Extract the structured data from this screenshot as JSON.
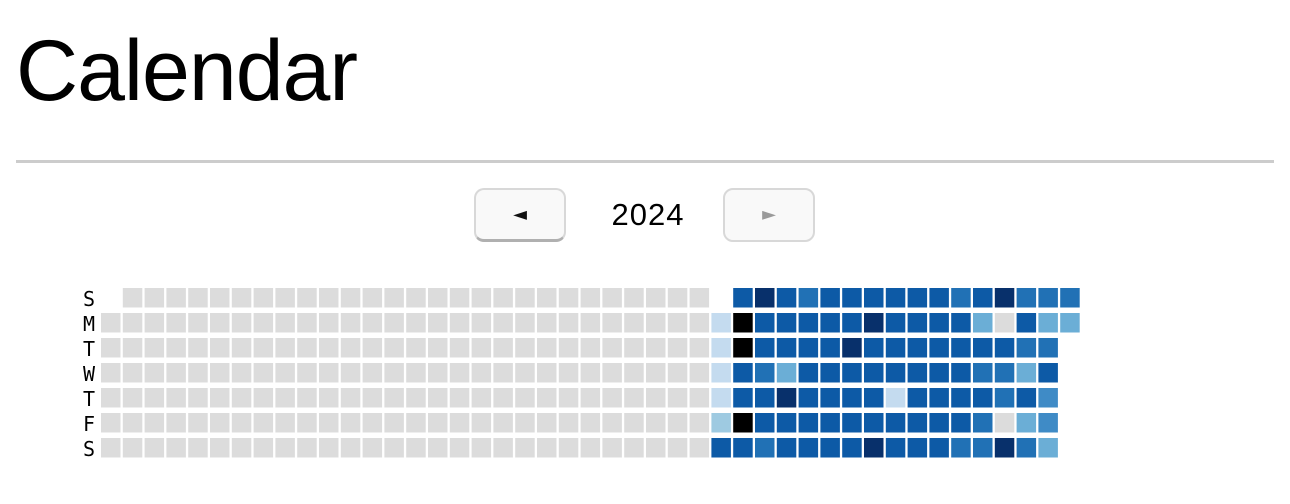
{
  "page": {
    "title": "Calendar"
  },
  "navigation": {
    "prev_label": "◄",
    "next_label": "►",
    "year": "2024"
  },
  "weekdays": [
    "S",
    "M",
    "T",
    "W",
    "T",
    "F",
    "S"
  ],
  "colors": {
    "empty": "#dcdcdc",
    "levels": [
      "#c4dbef",
      "#9ecae1",
      "#6baed6",
      "#3f8bc6",
      "#2171b5",
      "#0d5aa6",
      "#08306b"
    ]
  },
  "calendar": {
    "first_day_weekday": 1,
    "active_from_week": 28,
    "active_weeks": [
      [
        null,
        0,
        0,
        0,
        0,
        1,
        5
      ],
      [
        5,
        7,
        7,
        5,
        5,
        7,
        5
      ],
      [
        6,
        5,
        5,
        4,
        5,
        5,
        4
      ],
      [
        5,
        5,
        5,
        2,
        6,
        5,
        5
      ],
      [
        4,
        5,
        5,
        5,
        5,
        5,
        5
      ],
      [
        5,
        5,
        5,
        5,
        5,
        5,
        5
      ],
      [
        5,
        5,
        6,
        5,
        5,
        5,
        5
      ],
      [
        5,
        6,
        5,
        5,
        5,
        5,
        6
      ],
      [
        5,
        5,
        5,
        5,
        0,
        5,
        5
      ],
      [
        5,
        5,
        5,
        5,
        5,
        5,
        5
      ],
      [
        5,
        5,
        5,
        5,
        5,
        5,
        5
      ],
      [
        4,
        5,
        5,
        5,
        5,
        5,
        4
      ],
      [
        5,
        2,
        5,
        4,
        5,
        4,
        4
      ],
      [
        6,
        -1,
        5,
        4,
        4,
        -1,
        6
      ],
      [
        4,
        5,
        4,
        2,
        5,
        2,
        4
      ],
      [
        4,
        2,
        4,
        5,
        3,
        3,
        2
      ],
      [
        4,
        2,
        null,
        null,
        null,
        null,
        null
      ]
    ]
  }
}
